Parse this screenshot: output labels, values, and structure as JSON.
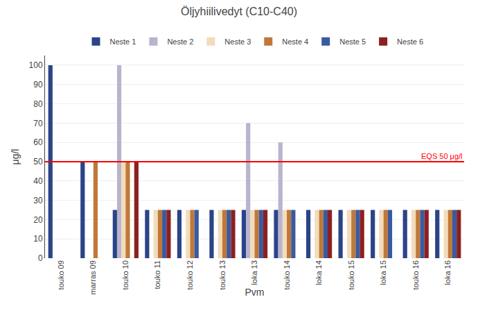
{
  "chart_data": {
    "type": "bar",
    "title": "Öljyhiilivedyt (C10-C40)",
    "xlabel": "Pvm",
    "ylabel": "μg/l",
    "categories": [
      "touko 09",
      "marras 09",
      "touko 10",
      "touko 11",
      "touko 12",
      "touko 13",
      "loka 13",
      "touko 14",
      "loka 14",
      "touko 15",
      "loka 15",
      "touko 16",
      "loka 16"
    ],
    "series": [
      {
        "name": "Neste 1",
        "color": "#2B4487",
        "values": [
          100,
          50,
          25,
          25,
          25,
          25,
          25,
          25,
          25,
          25,
          25,
          25,
          25
        ]
      },
      {
        "name": "Neste 2",
        "color": "#B8B4CF",
        "values": [
          0,
          0,
          100,
          0,
          0,
          0,
          70,
          60,
          0,
          0,
          0,
          0,
          0
        ]
      },
      {
        "name": "Neste 3",
        "color": "#F2DCBA",
        "values": [
          0,
          0,
          50,
          25,
          25,
          25,
          25,
          25,
          25,
          25,
          25,
          25,
          25
        ]
      },
      {
        "name": "Neste 4",
        "color": "#C07838",
        "values": [
          0,
          50,
          50,
          25,
          25,
          25,
          25,
          25,
          25,
          25,
          25,
          25,
          25
        ]
      },
      {
        "name": "Neste 5",
        "color": "#3A5AA0",
        "values": [
          0,
          0,
          0,
          25,
          25,
          25,
          25,
          25,
          25,
          25,
          25,
          25,
          25
        ]
      },
      {
        "name": "Neste 6",
        "color": "#8B2020",
        "values": [
          0,
          0,
          50,
          25,
          0,
          25,
          25,
          0,
          25,
          25,
          0,
          25,
          25
        ]
      }
    ],
    "annotations": [
      {
        "text": "EQS 50 μg/l",
        "y": 50,
        "color": "red",
        "line_style": "solid"
      }
    ],
    "ylim": [
      0,
      105
    ],
    "yticks": [
      0,
      10,
      20,
      30,
      40,
      50,
      60,
      70,
      80,
      90,
      100
    ],
    "grid": true,
    "legend": "top"
  }
}
